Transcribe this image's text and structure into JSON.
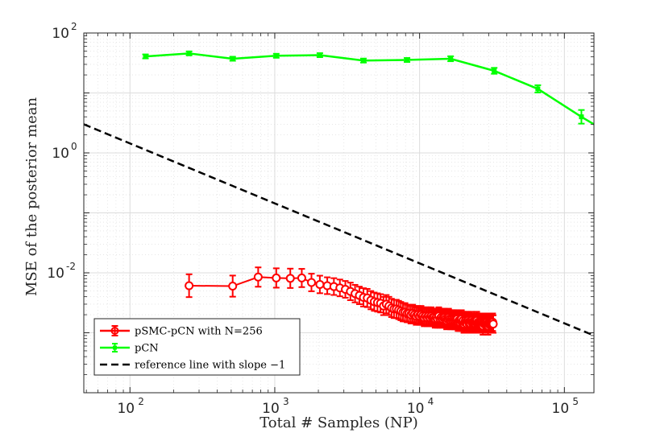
{
  "chart_data": {
    "type": "line",
    "xscale": "log",
    "yscale": "log",
    "xlim": [
      48,
      160000
    ],
    "ylim": [
      0.0001,
      100
    ],
    "xlabel": "Total # Samples (NP)",
    "ylabel": "MSE of the posterior mean",
    "x_ticks": [
      {
        "base": "10",
        "exp": "2",
        "value": 100
      },
      {
        "base": "10",
        "exp": "3",
        "value": 1000
      },
      {
        "base": "10",
        "exp": "4",
        "value": 10000
      },
      {
        "base": "10",
        "exp": "5",
        "value": 100000
      }
    ],
    "y_ticks": [
      {
        "base": "10",
        "exp": "2",
        "value": 100
      },
      {
        "base": "10",
        "exp": "0",
        "value": 1
      },
      {
        "base": "10",
        "exp": "-2",
        "value": 0.01
      }
    ],
    "grid": true,
    "legend_position": "bottom-left",
    "series": [
      {
        "name": "pSMC-pCN with N=256",
        "color": "#ff0000",
        "marker": "circle",
        "x": [
          256,
          512,
          768,
          1024,
          1280,
          1536,
          1792,
          2048,
          2304,
          2560,
          2816,
          3072,
          3328,
          3584,
          3840,
          4096,
          4352,
          4608,
          4864,
          5120,
          5376,
          5632,
          5888,
          6144,
          6400,
          6656,
          6912,
          7168,
          7424,
          7680,
          7936,
          8192,
          8448,
          8704,
          8960,
          9216,
          9472,
          9728,
          9984,
          10240,
          10496,
          10752,
          11008,
          11264,
          11520,
          11776,
          12032,
          12288,
          12544,
          12800,
          13056,
          13312,
          13568,
          13824,
          14080,
          14336,
          14592,
          14848,
          15104,
          15360,
          15616,
          15872,
          16128,
          16384,
          16640,
          16896,
          17152,
          17408,
          17664,
          17920,
          18176,
          18432,
          18688,
          18944,
          19200,
          19456,
          19712,
          19968,
          20224,
          20480,
          20736,
          20992,
          21248,
          21504,
          21760,
          22016,
          22272,
          22528,
          22784,
          23040,
          23296,
          23552,
          23808,
          24064,
          24320,
          24576,
          24832,
          25088,
          25344,
          25600,
          25856,
          26112,
          26368,
          26624,
          26880,
          27136,
          27392,
          27648,
          27904,
          28160,
          28416,
          28672,
          28928,
          29184,
          29440,
          29696,
          29952,
          30208,
          30464,
          30720,
          30976,
          31232,
          31488,
          31744,
          32000,
          32256
        ],
        "y": [
          0.0061,
          0.006,
          0.0085,
          0.0082,
          0.0081,
          0.0082,
          0.0069,
          0.0064,
          0.0061,
          0.0059,
          0.0056,
          0.0053,
          0.0049,
          0.0045,
          0.0042,
          0.0039,
          0.0038,
          0.0035,
          0.0033,
          0.0032,
          0.0031,
          0.0028,
          0.003,
          0.0028,
          0.0026,
          0.0025,
          0.0025,
          0.0024,
          0.0023,
          0.0022,
          0.0022,
          0.0021,
          0.0021,
          0.002,
          0.0021,
          0.002,
          0.0019,
          0.002,
          0.0019,
          0.002,
          0.0019,
          0.0018,
          0.0019,
          0.0018,
          0.0019,
          0.0018,
          0.0019,
          0.0018,
          0.0018,
          0.0017,
          0.0018,
          0.0017,
          0.0019,
          0.0017,
          0.0018,
          0.0017,
          0.0018,
          0.0018,
          0.0017,
          0.0016,
          0.0017,
          0.0018,
          0.0017,
          0.0016,
          0.0017,
          0.0016,
          0.0017,
          0.0016,
          0.0017,
          0.0016,
          0.0017,
          0.0015,
          0.0016,
          0.0015,
          0.0016,
          0.0017,
          0.0015,
          0.0016,
          0.0014,
          0.0015,
          0.0016,
          0.0015,
          0.0014,
          0.0016,
          0.0015,
          0.0014,
          0.0015,
          0.0014,
          0.0016,
          0.0015,
          0.0014,
          0.0015,
          0.0014,
          0.0015,
          0.0014,
          0.0015,
          0.0016,
          0.0014,
          0.0015,
          0.0014,
          0.0015,
          0.0014,
          0.0015,
          0.0014,
          0.0015,
          0.0014,
          0.0013,
          0.0015,
          0.0014,
          0.0015,
          0.0014,
          0.0015,
          0.0014,
          0.0015,
          0.0014,
          0.0013,
          0.0014,
          0.0015,
          0.0014,
          0.0014,
          0.0015,
          0.0014,
          0.0015,
          0.0014,
          0.0015,
          0.0014
        ],
        "error_factor": [
          1.55,
          1.5,
          1.45,
          1.45,
          1.45,
          1.42,
          1.4,
          1.4,
          1.38,
          1.38,
          1.38,
          1.38,
          1.4,
          1.4,
          1.4,
          1.42,
          1.42,
          1.42,
          1.42,
          1.42,
          1.42,
          1.42,
          1.42,
          1.42,
          1.42,
          1.42,
          1.42,
          1.42,
          1.42,
          1.42,
          1.42,
          1.4,
          1.4,
          1.4,
          1.4,
          1.4,
          1.4,
          1.4,
          1.4,
          1.4,
          1.4,
          1.4,
          1.4,
          1.4,
          1.4,
          1.4,
          1.4,
          1.4,
          1.4,
          1.4,
          1.4,
          1.4,
          1.4,
          1.4,
          1.4,
          1.4,
          1.4,
          1.4,
          1.4,
          1.4,
          1.4,
          1.4,
          1.4,
          1.4,
          1.4,
          1.4,
          1.4,
          1.4,
          1.4,
          1.4,
          1.4,
          1.4,
          1.4,
          1.4,
          1.4,
          1.4,
          1.4,
          1.4,
          1.4,
          1.4,
          1.4,
          1.4,
          1.4,
          1.4,
          1.4,
          1.4,
          1.4,
          1.4,
          1.4,
          1.4,
          1.4,
          1.4,
          1.4,
          1.4,
          1.4,
          1.4,
          1.4,
          1.4,
          1.4,
          1.4,
          1.4,
          1.4,
          1.4,
          1.4,
          1.4,
          1.4,
          1.4,
          1.4,
          1.4,
          1.4,
          1.4,
          1.4,
          1.4,
          1.4,
          1.4,
          1.4,
          1.4,
          1.4,
          1.4,
          1.4,
          1.4,
          1.4,
          1.4,
          1.4,
          1.4,
          1.4
        ]
      },
      {
        "name": "pCN",
        "color": "#00ff00",
        "marker": "square",
        "x": [
          128,
          256,
          512,
          1024,
          2048,
          4096,
          8192,
          16384,
          32768,
          65536,
          131072,
          160000
        ],
        "y": [
          40.7,
          45.7,
          37.2,
          41.7,
          42.7,
          34.7,
          35.5,
          37.2,
          23.4,
          11.7,
          4.0,
          3.0
        ],
        "error_factor": [
          1.08,
          1.08,
          1.08,
          1.08,
          1.08,
          1.08,
          1.08,
          1.1,
          1.12,
          1.15,
          1.3,
          0
        ]
      },
      {
        "name": "reference line with slope −1",
        "color": "#000000",
        "style": "dashed",
        "x": [
          48,
          160000
        ],
        "y": [
          3.0,
          0.0009
        ]
      }
    ]
  },
  "legend": {
    "items": [
      "pSMC-pCN with N=256",
      "pCN",
      "reference line with slope −1"
    ]
  }
}
